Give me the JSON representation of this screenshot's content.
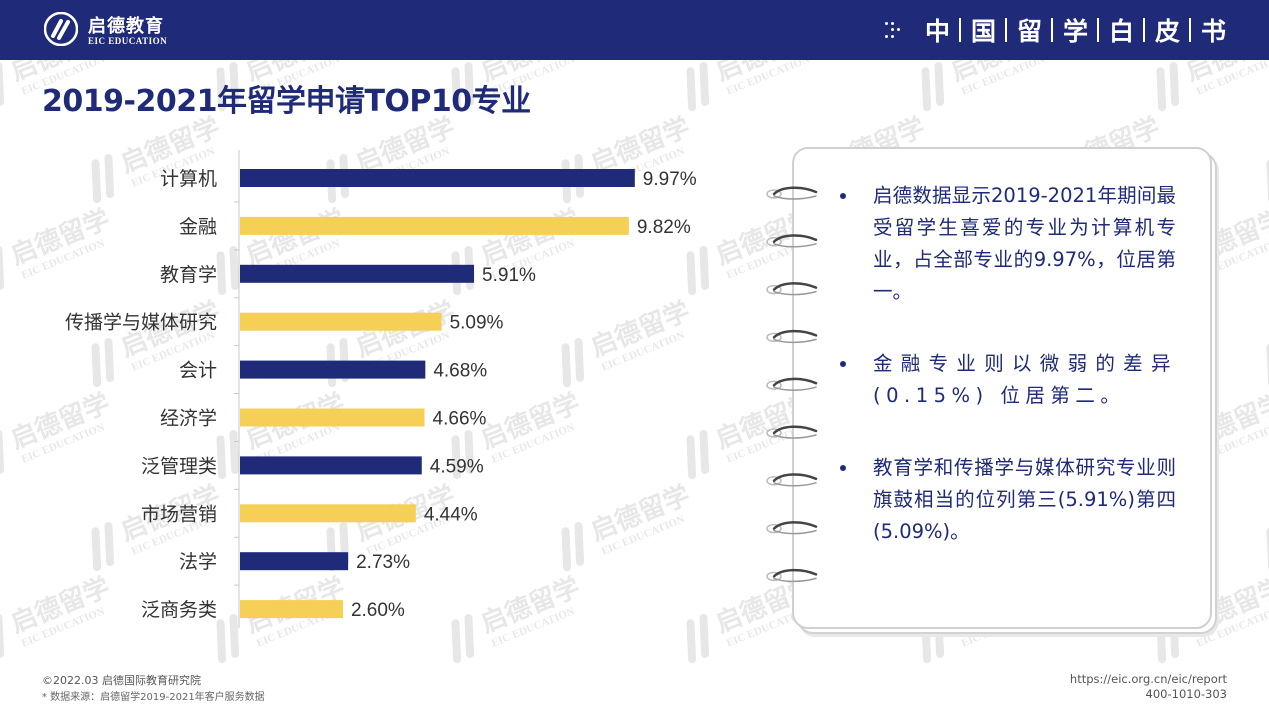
{
  "header": {
    "logo_cn": "启德教育",
    "logo_en": "EIC EDUCATION",
    "series_chars": [
      "中",
      "国",
      "留",
      "学",
      "白",
      "皮",
      "书"
    ]
  },
  "page_title": "2019-2021年留学申请TOP10专业",
  "chart_data": {
    "type": "bar",
    "orientation": "horizontal",
    "categories": [
      "计算机",
      "金融",
      "教育学",
      "传播学与媒体研究",
      "会计",
      "经济学",
      "泛管理类",
      "市场营销",
      "法学",
      "泛商务类"
    ],
    "values": [
      9.97,
      9.82,
      5.91,
      5.09,
      4.68,
      4.66,
      4.59,
      4.44,
      2.73,
      2.6
    ],
    "value_labels": [
      "9.97%",
      "9.82%",
      "5.91%",
      "5.09%",
      "4.68%",
      "4.66%",
      "4.59%",
      "4.44%",
      "2.73%",
      "2.60%"
    ],
    "colors": [
      "#1f2a78",
      "#f6cf57"
    ],
    "color_pattern": "alternating",
    "title": "",
    "xlabel": "",
    "ylabel": "",
    "xlim": [
      0,
      10
    ],
    "unit": "%",
    "grid": false,
    "legend": "none"
  },
  "notes": {
    "bullets": [
      "启德数据显示2019-2021年期间最受留学生喜爱的专业为计算机专业，占全部专业的9.97%，位居第一。",
      "金融专业则以微弱的差异(0.15%) 位居第二。",
      "教育学和传播学与媒体研究专业则旗鼓相当的位列第三(5.91%)第四(5.09%)。"
    ]
  },
  "watermark": {
    "cn": "启德留学",
    "en": "EIC EDUCATION"
  },
  "footer": {
    "copyright": "©2022.03 启德国际教育研究院",
    "source": "* 数据来源：启德留学2019-2021年客户服务数据",
    "url": "https://eic.org.cn/eic/report",
    "phone": "400-1010-303"
  },
  "colors": {
    "brand_navy": "#1f2a78",
    "accent_yellow": "#f6cf57"
  }
}
